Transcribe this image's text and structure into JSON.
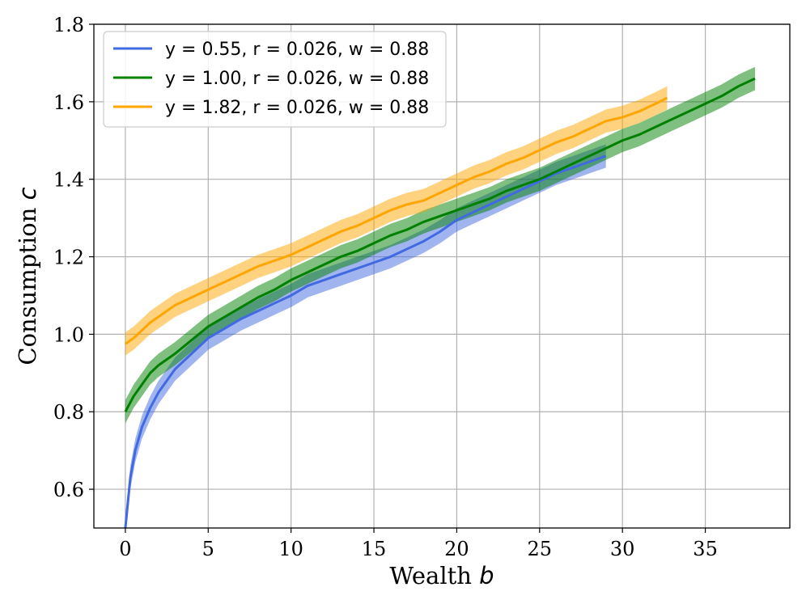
{
  "chart_data": {
    "type": "line",
    "xlabel": "Wealth",
    "xlabel_var": "b",
    "ylabel": "Consumption",
    "ylabel_var": "c",
    "xlim": [
      -1.9,
      40.1
    ],
    "ylim": [
      0.5,
      1.8
    ],
    "xticks": [
      0,
      5,
      10,
      15,
      20,
      25,
      30,
      35
    ],
    "yticks": [
      0.6,
      0.8,
      1.0,
      1.2,
      1.4,
      1.6,
      1.8
    ],
    "xtick_labels": [
      "0",
      "5",
      "10",
      "15",
      "20",
      "25",
      "30",
      "35"
    ],
    "ytick_labels": [
      "0.6",
      "0.8",
      "1.0",
      "1.2",
      "1.4",
      "1.6",
      "1.8"
    ],
    "grid": true,
    "legend_position": "top-left",
    "band_halfwidth": 0.03,
    "series": [
      {
        "name": "y = 0.55, r = 0.026, w = 0.88",
        "color": "#4169e1",
        "x": [
          0,
          0.3,
          0.6,
          1,
          1.5,
          2,
          2.5,
          3,
          4,
          5,
          6,
          7,
          8,
          9,
          10,
          11,
          12,
          13,
          14,
          15,
          16,
          17,
          18,
          19,
          20,
          21,
          22,
          23,
          24,
          25,
          26,
          27,
          28,
          29
        ],
        "y": [
          0.5,
          0.63,
          0.7,
          0.76,
          0.81,
          0.85,
          0.88,
          0.91,
          0.95,
          0.99,
          1.015,
          1.04,
          1.06,
          1.08,
          1.1,
          1.125,
          1.14,
          1.155,
          1.17,
          1.185,
          1.2,
          1.22,
          1.24,
          1.265,
          1.295,
          1.315,
          1.335,
          1.355,
          1.375,
          1.395,
          1.415,
          1.43,
          1.445,
          1.46
        ]
      },
      {
        "name": "y = 1.00, r = 0.026, w = 0.88",
        "color": "#008000",
        "x": [
          0,
          0.5,
          1,
          1.5,
          2,
          3,
          4,
          5,
          6,
          7,
          8,
          9,
          10,
          11,
          12,
          13,
          14,
          15,
          16,
          17,
          18,
          19,
          20,
          21,
          22,
          23,
          24,
          25,
          26,
          27,
          28,
          29,
          30,
          31,
          32,
          33,
          34,
          35,
          36,
          37,
          38
        ],
        "y": [
          0.8,
          0.84,
          0.87,
          0.9,
          0.92,
          0.95,
          0.985,
          1.02,
          1.045,
          1.07,
          1.095,
          1.115,
          1.14,
          1.16,
          1.18,
          1.2,
          1.215,
          1.235,
          1.255,
          1.27,
          1.29,
          1.305,
          1.32,
          1.335,
          1.35,
          1.37,
          1.385,
          1.4,
          1.42,
          1.44,
          1.46,
          1.48,
          1.5,
          1.515,
          1.535,
          1.555,
          1.575,
          1.595,
          1.615,
          1.64,
          1.66
        ]
      },
      {
        "name": "y = 1.82, r = 0.026, w = 0.88",
        "color": "#ffa500",
        "x": [
          0,
          0.5,
          1,
          1.5,
          2,
          3,
          4,
          5,
          6,
          7,
          8,
          9,
          10,
          11,
          12,
          13,
          14,
          15,
          16,
          17,
          18,
          19,
          20,
          21,
          22,
          23,
          24,
          25,
          26,
          27,
          28,
          29,
          30,
          31,
          32,
          32.7
        ],
        "y": [
          0.975,
          0.99,
          1.01,
          1.03,
          1.045,
          1.075,
          1.095,
          1.115,
          1.135,
          1.155,
          1.175,
          1.19,
          1.205,
          1.225,
          1.245,
          1.265,
          1.28,
          1.3,
          1.32,
          1.335,
          1.345,
          1.365,
          1.385,
          1.405,
          1.42,
          1.44,
          1.455,
          1.475,
          1.495,
          1.51,
          1.53,
          1.55,
          1.56,
          1.575,
          1.595,
          1.61
        ]
      }
    ]
  }
}
